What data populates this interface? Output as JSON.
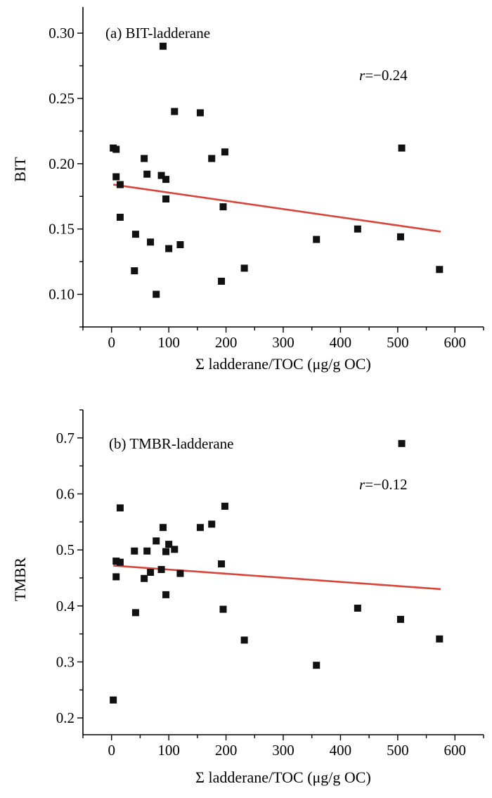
{
  "chart_data": [
    {
      "type": "scatter",
      "title": "(a) BIT-ladderane",
      "annotation": "r=−0.24",
      "annotation_r": "r",
      "annotation_value": "=−0.24",
      "xlabel": "Σ ladderane/TOC (μg/g OC)",
      "ylabel": "BIT",
      "xlim": [
        -50,
        650
      ],
      "ylim": [
        0.075,
        0.32
      ],
      "x_ticks": [
        0,
        100,
        200,
        300,
        400,
        500,
        600
      ],
      "x_tick_labels": [
        "0",
        "100",
        "200",
        "300",
        "400",
        "500",
        "600"
      ],
      "y_ticks": [
        0.1,
        0.15,
        0.2,
        0.25,
        0.3
      ],
      "y_tick_labels": [
        "0.10",
        "0.15",
        "0.20",
        "0.25",
        "0.30"
      ],
      "grid": false,
      "points": [
        {
          "x": 3,
          "y": 0.212
        },
        {
          "x": 8,
          "y": 0.211
        },
        {
          "x": 8,
          "y": 0.19
        },
        {
          "x": 15,
          "y": 0.184
        },
        {
          "x": 15,
          "y": 0.159
        },
        {
          "x": 40,
          "y": 0.118
        },
        {
          "x": 42,
          "y": 0.146
        },
        {
          "x": 57,
          "y": 0.204
        },
        {
          "x": 62,
          "y": 0.192
        },
        {
          "x": 68,
          "y": 0.14
        },
        {
          "x": 78,
          "y": 0.1
        },
        {
          "x": 87,
          "y": 0.191
        },
        {
          "x": 90,
          "y": 0.29
        },
        {
          "x": 95,
          "y": 0.188
        },
        {
          "x": 95,
          "y": 0.173
        },
        {
          "x": 100,
          "y": 0.135
        },
        {
          "x": 110,
          "y": 0.24
        },
        {
          "x": 120,
          "y": 0.138
        },
        {
          "x": 155,
          "y": 0.239
        },
        {
          "x": 175,
          "y": 0.204
        },
        {
          "x": 192,
          "y": 0.11
        },
        {
          "x": 195,
          "y": 0.167
        },
        {
          "x": 198,
          "y": 0.209
        },
        {
          "x": 232,
          "y": 0.12
        },
        {
          "x": 358,
          "y": 0.142
        },
        {
          "x": 430,
          "y": 0.15
        },
        {
          "x": 505,
          "y": 0.144
        },
        {
          "x": 507,
          "y": 0.212
        },
        {
          "x": 573,
          "y": 0.119
        }
      ],
      "trendline": {
        "x": [
          3,
          575
        ],
        "y": [
          0.184,
          0.148
        ],
        "color": "#d9453a"
      }
    },
    {
      "type": "scatter",
      "title": "(b) TMBR-ladderane",
      "annotation": "r=−0.12",
      "annotation_r": "r",
      "annotation_value": "=−0.12",
      "xlabel": "Σ ladderane/TOC (μg/g OC)",
      "ylabel": "TMBR",
      "xlim": [
        -50,
        650
      ],
      "ylim": [
        0.17,
        0.75
      ],
      "x_ticks": [
        0,
        100,
        200,
        300,
        400,
        500,
        600
      ],
      "x_tick_labels": [
        "0",
        "100",
        "200",
        "300",
        "400",
        "500",
        "600"
      ],
      "y_ticks": [
        0.2,
        0.3,
        0.4,
        0.5,
        0.6,
        0.7
      ],
      "y_tick_labels": [
        "0.2",
        "0.3",
        "0.4",
        "0.5",
        "0.6",
        "0.7"
      ],
      "grid": false,
      "points": [
        {
          "x": 3,
          "y": 0.232
        },
        {
          "x": 8,
          "y": 0.48
        },
        {
          "x": 8,
          "y": 0.452
        },
        {
          "x": 15,
          "y": 0.575
        },
        {
          "x": 15,
          "y": 0.478
        },
        {
          "x": 40,
          "y": 0.498
        },
        {
          "x": 42,
          "y": 0.388
        },
        {
          "x": 57,
          "y": 0.449
        },
        {
          "x": 62,
          "y": 0.498
        },
        {
          "x": 68,
          "y": 0.46
        },
        {
          "x": 78,
          "y": 0.516
        },
        {
          "x": 87,
          "y": 0.465
        },
        {
          "x": 90,
          "y": 0.54
        },
        {
          "x": 95,
          "y": 0.497
        },
        {
          "x": 95,
          "y": 0.42
        },
        {
          "x": 100,
          "y": 0.51
        },
        {
          "x": 110,
          "y": 0.501
        },
        {
          "x": 120,
          "y": 0.458
        },
        {
          "x": 155,
          "y": 0.54
        },
        {
          "x": 175,
          "y": 0.546
        },
        {
          "x": 192,
          "y": 0.475
        },
        {
          "x": 195,
          "y": 0.394
        },
        {
          "x": 198,
          "y": 0.578
        },
        {
          "x": 232,
          "y": 0.339
        },
        {
          "x": 358,
          "y": 0.294
        },
        {
          "x": 430,
          "y": 0.396
        },
        {
          "x": 505,
          "y": 0.376
        },
        {
          "x": 507,
          "y": 0.69
        },
        {
          "x": 573,
          "y": 0.341
        }
      ],
      "trendline": {
        "x": [
          3,
          575
        ],
        "y": [
          0.472,
          0.43
        ],
        "color": "#d9453a"
      }
    }
  ]
}
